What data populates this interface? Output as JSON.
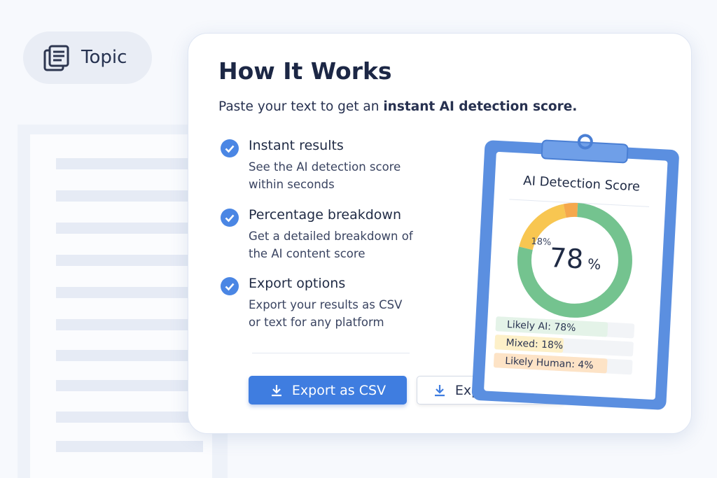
{
  "topic": {
    "label": "Topic"
  },
  "card": {
    "title": "How It Works",
    "intro": {
      "text": "Paste your text to get an ",
      "emphasis": "instant AI detection score."
    },
    "features": [
      {
        "title": "Instant results",
        "lines": [
          "See the AI detection score",
          "within seconds"
        ]
      },
      {
        "title": "Percentage breakdown",
        "lines": [
          "Get a detailed breakdown of",
          "the AI content score"
        ]
      },
      {
        "title": "Export options",
        "lines": [
          "Export your results as CSV",
          "or text for any platform"
        ]
      }
    ],
    "buttons": [
      "Export as CSV",
      "Export as Text"
    ]
  },
  "score_card": {
    "title": "AI Detection Score",
    "center_value": "78",
    "center_unit": "%",
    "segments": [
      {
        "label": "Likely AI: 78%",
        "value": 78,
        "color": "#74c38f"
      },
      {
        "label": "Mixed: 18%",
        "value": 18,
        "color": "#f8c651",
        "value_label": "18%"
      },
      {
        "label": "Likely Human: 4%",
        "value": 4,
        "color": "#f5a84c"
      }
    ]
  }
}
